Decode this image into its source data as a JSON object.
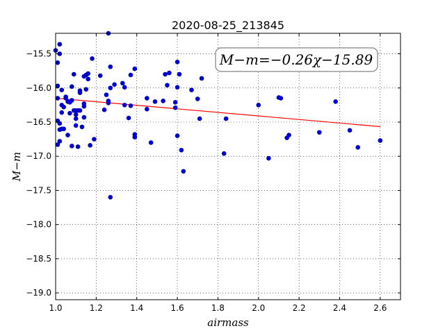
{
  "chart_data": {
    "type": "scatter",
    "title": "2020-08-25_213845",
    "xlabel": "airmass",
    "ylabel": "M−m",
    "xlim": [
      1.0,
      2.7
    ],
    "ylim": [
      -19.1,
      -15.2
    ],
    "x_ticks": [
      1.0,
      1.2,
      1.4,
      1.6,
      1.8,
      2.0,
      2.2,
      2.4,
      2.6
    ],
    "x_tick_labels": [
      "1.0",
      "1.2",
      "1.4",
      "1.6",
      "1.8",
      "2.0",
      "2.2",
      "2.4",
      "2.6"
    ],
    "y_ticks": [
      -15.5,
      -16.0,
      -16.5,
      -17.0,
      -17.5,
      -18.0,
      -18.5,
      -19.0
    ],
    "y_tick_labels": [
      "−15.5",
      "−16.0",
      "−16.5",
      "−17.0",
      "−17.5",
      "−18.0",
      "−18.5",
      "−19.0"
    ],
    "grid": true,
    "annotation": "M−m=−0.26χ−15.89",
    "fit_line": {
      "slope": -0.26,
      "intercept": -15.89,
      "x_range": [
        1.0,
        2.6
      ],
      "color": "#ff0000"
    },
    "point_color": "#0000cc",
    "points": [
      [
        1.0,
        -15.45
      ],
      [
        1.01,
        -16.15
      ],
      [
        1.01,
        -16.83
      ],
      [
        1.01,
        -15.63
      ],
      [
        1.01,
        -15.97
      ],
      [
        1.01,
        -16.48
      ],
      [
        1.02,
        -16.78
      ],
      [
        1.02,
        -16.52
      ],
      [
        1.02,
        -16.61
      ],
      [
        1.02,
        -15.36
      ],
      [
        1.02,
        -15.5
      ],
      [
        1.03,
        -16.36
      ],
      [
        1.03,
        -16.25
      ],
      [
        1.03,
        -16.03
      ],
      [
        1.03,
        -16.6
      ],
      [
        1.04,
        -16.28
      ],
      [
        1.04,
        -16.6
      ],
      [
        1.05,
        -16.13
      ],
      [
        1.05,
        -16.15
      ],
      [
        1.06,
        -16.2
      ],
      [
        1.06,
        -16.69
      ],
      [
        1.07,
        -16.37
      ],
      [
        1.07,
        -16.21
      ],
      [
        1.08,
        -16.18
      ],
      [
        1.08,
        -16.85
      ],
      [
        1.08,
        -15.98
      ],
      [
        1.09,
        -16.33
      ],
      [
        1.09,
        -15.8
      ],
      [
        1.1,
        -16.39
      ],
      [
        1.1,
        -16.45
      ],
      [
        1.1,
        -16.33
      ],
      [
        1.1,
        -16.55
      ],
      [
        1.11,
        -16.33
      ],
      [
        1.11,
        -16.86
      ],
      [
        1.12,
        -16.04
      ],
      [
        1.12,
        -16.07
      ],
      [
        1.12,
        -16.33
      ],
      [
        1.13,
        -16.57
      ],
      [
        1.14,
        -15.83
      ],
      [
        1.14,
        -16.23
      ],
      [
        1.14,
        -16.43
      ],
      [
        1.14,
        -16.27
      ],
      [
        1.15,
        -16.02
      ],
      [
        1.15,
        -15.81
      ],
      [
        1.16,
        -15.87
      ],
      [
        1.16,
        -15.79
      ],
      [
        1.17,
        -16.84
      ],
      [
        1.18,
        -15.57
      ],
      [
        1.19,
        -16.75
      ],
      [
        1.22,
        -15.82
      ],
      [
        1.24,
        -16.32
      ],
      [
        1.25,
        -16.1
      ],
      [
        1.26,
        -16.22
      ],
      [
        1.26,
        -16.19
      ],
      [
        1.26,
        -15.2
      ],
      [
        1.27,
        -15.69
      ],
      [
        1.27,
        -16.0
      ],
      [
        1.27,
        -17.6
      ],
      [
        1.29,
        -15.95
      ],
      [
        1.33,
        -15.93
      ],
      [
        1.34,
        -15.99
      ],
      [
        1.34,
        -16.25
      ],
      [
        1.36,
        -16.44
      ],
      [
        1.37,
        -15.81
      ],
      [
        1.37,
        -16.26
      ],
      [
        1.39,
        -16.68
      ],
      [
        1.39,
        -16.72
      ],
      [
        1.39,
        -15.72
      ],
      [
        1.45,
        -16.15
      ],
      [
        1.45,
        -16.31
      ],
      [
        1.47,
        -16.8
      ],
      [
        1.49,
        -16.2
      ],
      [
        1.53,
        -16.19
      ],
      [
        1.54,
        -15.8
      ],
      [
        1.55,
        -15.96
      ],
      [
        1.56,
        -15.78
      ],
      [
        1.59,
        -16.21
      ],
      [
        1.59,
        -16.29
      ],
      [
        1.6,
        -16.7
      ],
      [
        1.6,
        -15.62
      ],
      [
        1.6,
        -15.99
      ],
      [
        1.61,
        -15.8
      ],
      [
        1.62,
        -16.91
      ],
      [
        1.63,
        -17.22
      ],
      [
        1.67,
        -16.03
      ],
      [
        1.7,
        -16.16
      ],
      [
        1.71,
        -16.45
      ],
      [
        1.72,
        -15.86
      ],
      [
        1.83,
        -16.96
      ],
      [
        1.84,
        -16.45
      ],
      [
        2.0,
        -16.25
      ],
      [
        2.05,
        -17.03
      ],
      [
        2.1,
        -16.14
      ],
      [
        2.11,
        -16.15
      ],
      [
        2.14,
        -16.73
      ],
      [
        2.15,
        -16.69
      ],
      [
        2.3,
        -16.65
      ],
      [
        2.38,
        -16.2
      ],
      [
        2.45,
        -16.62
      ],
      [
        2.49,
        -16.87
      ],
      [
        2.6,
        -16.77
      ]
    ]
  }
}
